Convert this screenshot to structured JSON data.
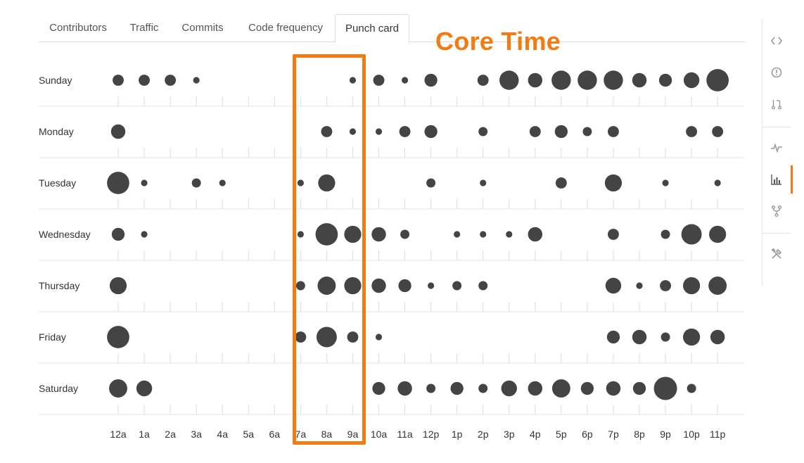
{
  "tabs": [
    {
      "label": "Contributors",
      "active": false
    },
    {
      "label": "Traffic",
      "active": false
    },
    {
      "label": "Commits",
      "active": false
    },
    {
      "label": "Code frequency",
      "active": false
    },
    {
      "label": "Punch card",
      "active": true
    }
  ],
  "annotation": {
    "label": "Core Time",
    "highlighted_hours": [
      "7a",
      "8a",
      "9a"
    ],
    "color": "#f47a12"
  },
  "side_nav": [
    {
      "icon": "code-icon",
      "selected": false
    },
    {
      "icon": "issue-icon",
      "selected": false
    },
    {
      "icon": "pull-request-icon",
      "selected": false
    },
    {
      "icon": "pulse-icon",
      "selected": false
    },
    {
      "icon": "graph-icon",
      "selected": true
    },
    {
      "icon": "fork-icon",
      "selected": false
    },
    {
      "icon": "settings-icon",
      "selected": false
    }
  ],
  "chart_data": {
    "type": "scatter",
    "subtype": "punch-card",
    "days": [
      "Sunday",
      "Monday",
      "Tuesday",
      "Wednesday",
      "Thursday",
      "Friday",
      "Saturday"
    ],
    "hours": [
      "12a",
      "1a",
      "2a",
      "3a",
      "4a",
      "5a",
      "6a",
      "7a",
      "8a",
      "9a",
      "10a",
      "11a",
      "12p",
      "1p",
      "2p",
      "3p",
      "4p",
      "5p",
      "6p",
      "7p",
      "8p",
      "9p",
      "10p",
      "11p"
    ],
    "values": [
      [
        3,
        3,
        3,
        1,
        0,
        0,
        0,
        0,
        0,
        1,
        3,
        1,
        4,
        0,
        3,
        9,
        5,
        9,
        9,
        9,
        5,
        4,
        6,
        12
      ],
      [
        5,
        0,
        0,
        0,
        0,
        0,
        0,
        0,
        3,
        1,
        1,
        3,
        4,
        0,
        2,
        0,
        3,
        4,
        2,
        3,
        0,
        0,
        3,
        3
      ],
      [
        12,
        1,
        0,
        2,
        1,
        0,
        0,
        1,
        7,
        0,
        0,
        0,
        2,
        0,
        1,
        0,
        0,
        3,
        0,
        7,
        0,
        1,
        0,
        1
      ],
      [
        4,
        1,
        0,
        0,
        0,
        0,
        0,
        1,
        12,
        7,
        5,
        2,
        0,
        1,
        1,
        1,
        5,
        0,
        0,
        3,
        0,
        2,
        10,
        7
      ],
      [
        7,
        0,
        0,
        0,
        0,
        0,
        0,
        2,
        8,
        7,
        5,
        4,
        1,
        2,
        2,
        0,
        0,
        0,
        0,
        6,
        1,
        3,
        7,
        8
      ],
      [
        12,
        0,
        0,
        0,
        0,
        0,
        0,
        3,
        10,
        3,
        1,
        0,
        0,
        0,
        0,
        0,
        0,
        0,
        0,
        4,
        5,
        2,
        7,
        5
      ],
      [
        8,
        6,
        0,
        0,
        0,
        0,
        0,
        0,
        0,
        0,
        4,
        5,
        2,
        4,
        2,
        6,
        5,
        8,
        4,
        5,
        4,
        13,
        2,
        0
      ]
    ],
    "max_value": 13,
    "dot_color": "#444444"
  }
}
